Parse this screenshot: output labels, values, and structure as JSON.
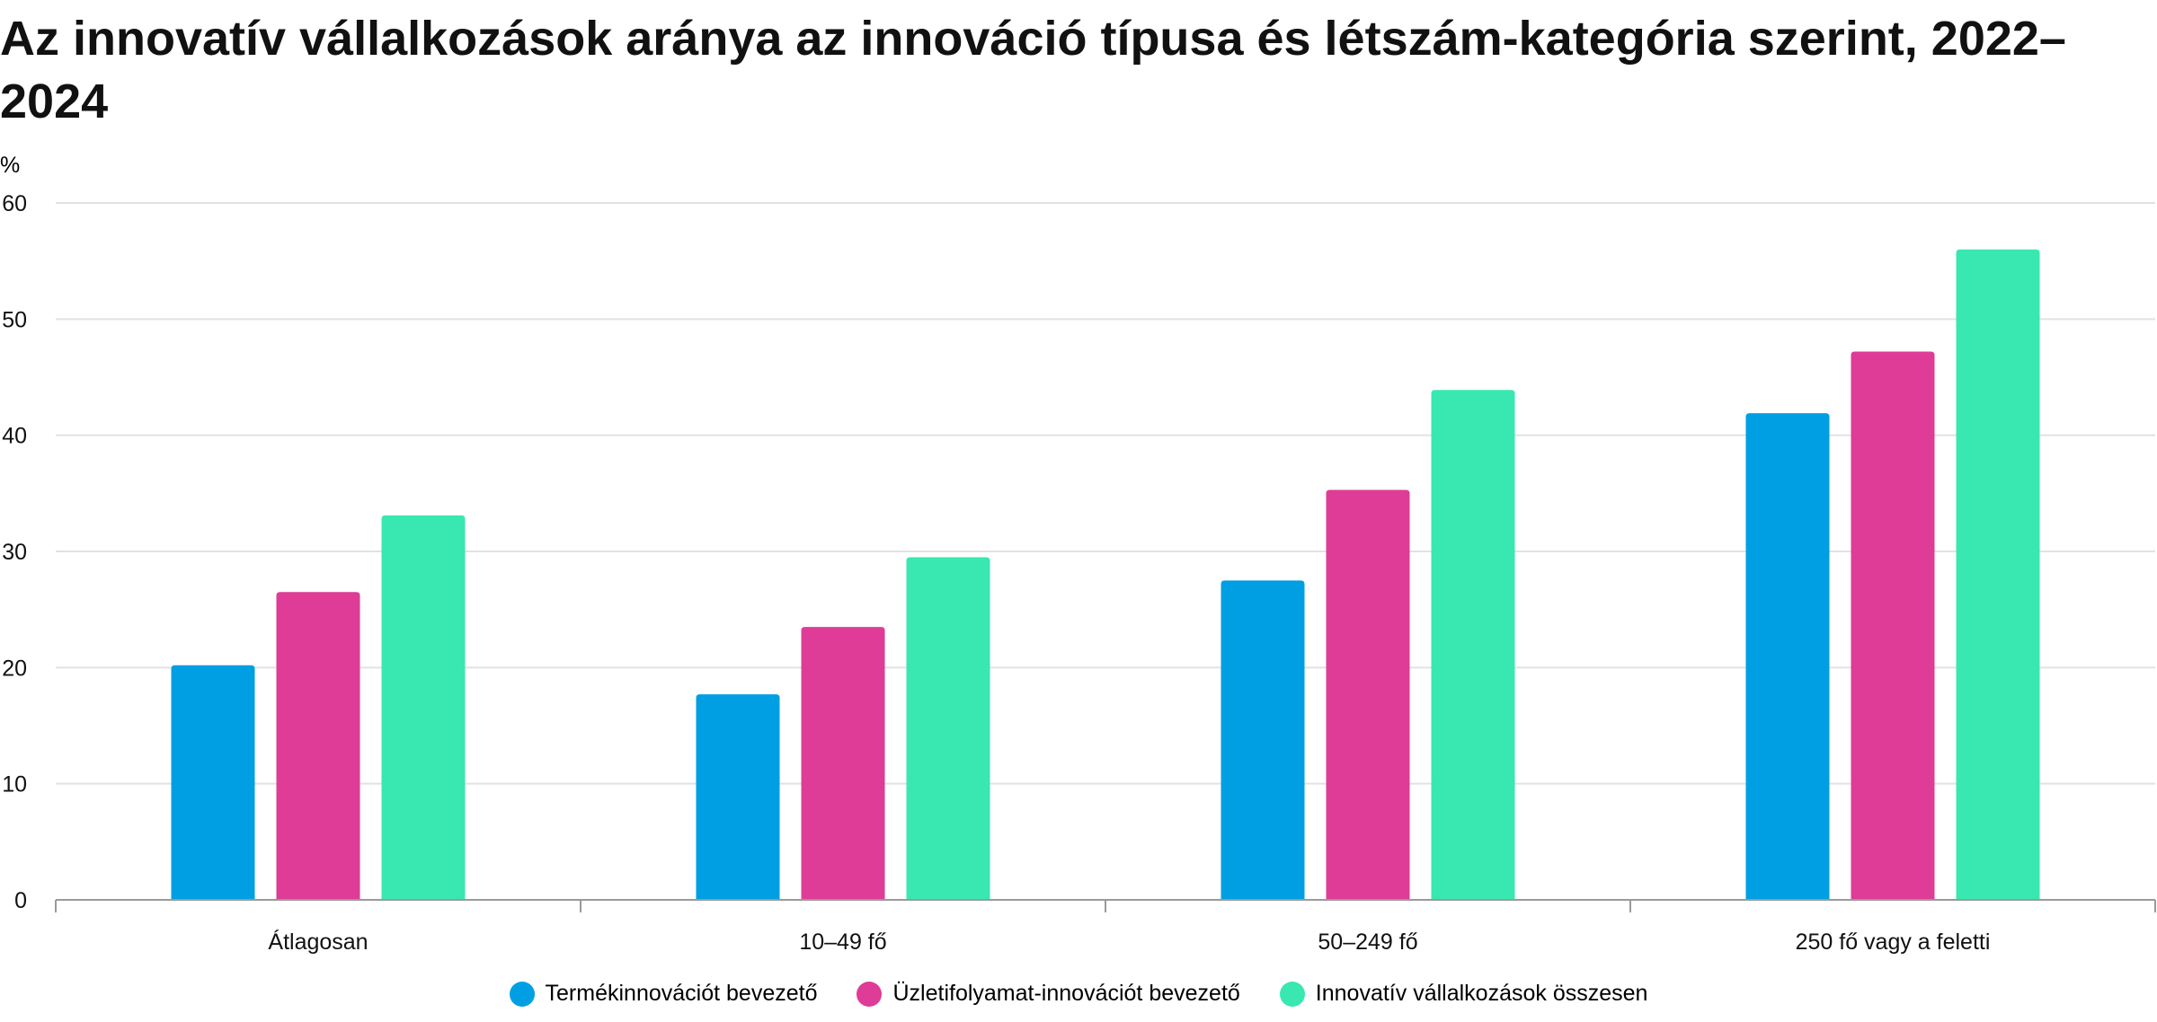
{
  "chart_data": {
    "type": "bar",
    "title": "Az innovatív vállalkozások aránya az innováció típusa és létszám-kategória szerint, 2022–2024",
    "ylabel": "%",
    "xlabel": "",
    "ylim": [
      0,
      60
    ],
    "yticks": [
      0,
      10,
      20,
      30,
      40,
      50,
      60
    ],
    "grid": true,
    "legend_position": "bottom",
    "categories": [
      "Átlagosan",
      "10–49 fő",
      "50–249 fő",
      "250 fő vagy a feletti"
    ],
    "series": [
      {
        "name": "Termékinnovációt bevezető",
        "color": "#009FE3",
        "values": [
          20.2,
          17.7,
          27.5,
          41.9
        ]
      },
      {
        "name": "Üzletifolyamat-innovációt bevezető",
        "color": "#DE3C96",
        "values": [
          26.5,
          23.5,
          35.3,
          47.2
        ]
      },
      {
        "name": "Innovatív vállalkozások összesen",
        "color": "#38E8B0",
        "values": [
          33.1,
          29.5,
          43.9,
          56.0
        ]
      }
    ]
  }
}
